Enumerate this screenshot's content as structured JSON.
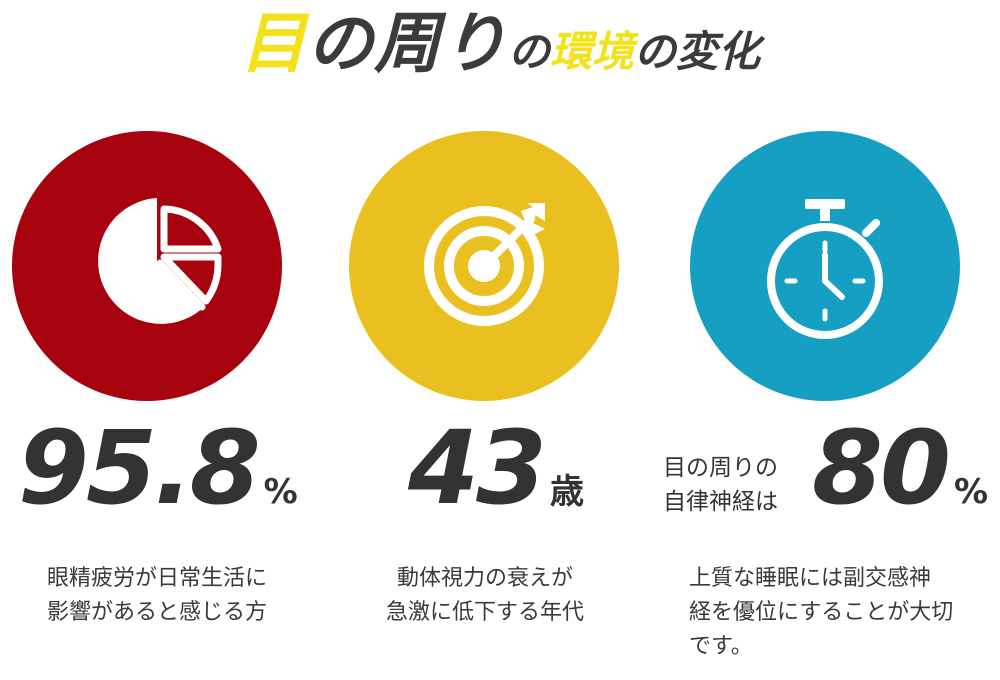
{
  "title": {
    "part1": "目",
    "part2": "の周り",
    "part3": "の",
    "part4": "環境",
    "part5": "の変化"
  },
  "colors": {
    "red": "#a7030f",
    "yellow": "#e9c020",
    "blue": "#169fc2",
    "title_accent": "#f3e21a"
  },
  "stats": [
    {
      "icon": "pie-chart-icon",
      "value": "95.8",
      "unit": "%",
      "description_lines": [
        "眼精疲労が日常生活に",
        "影響があると感じる方"
      ]
    },
    {
      "icon": "target-icon",
      "value": "43",
      "unit": "歳",
      "description_lines": [
        "動体視力の衰えが",
        "急激に低下する年代"
      ]
    },
    {
      "icon": "stopwatch-icon",
      "prefix_lines": [
        "目の周りの",
        "自律神経は"
      ],
      "value": "80",
      "unit": "%",
      "description_lines": [
        "上質な睡眠には副交感神",
        "経を優位にすることが大切",
        "です。"
      ]
    }
  ]
}
